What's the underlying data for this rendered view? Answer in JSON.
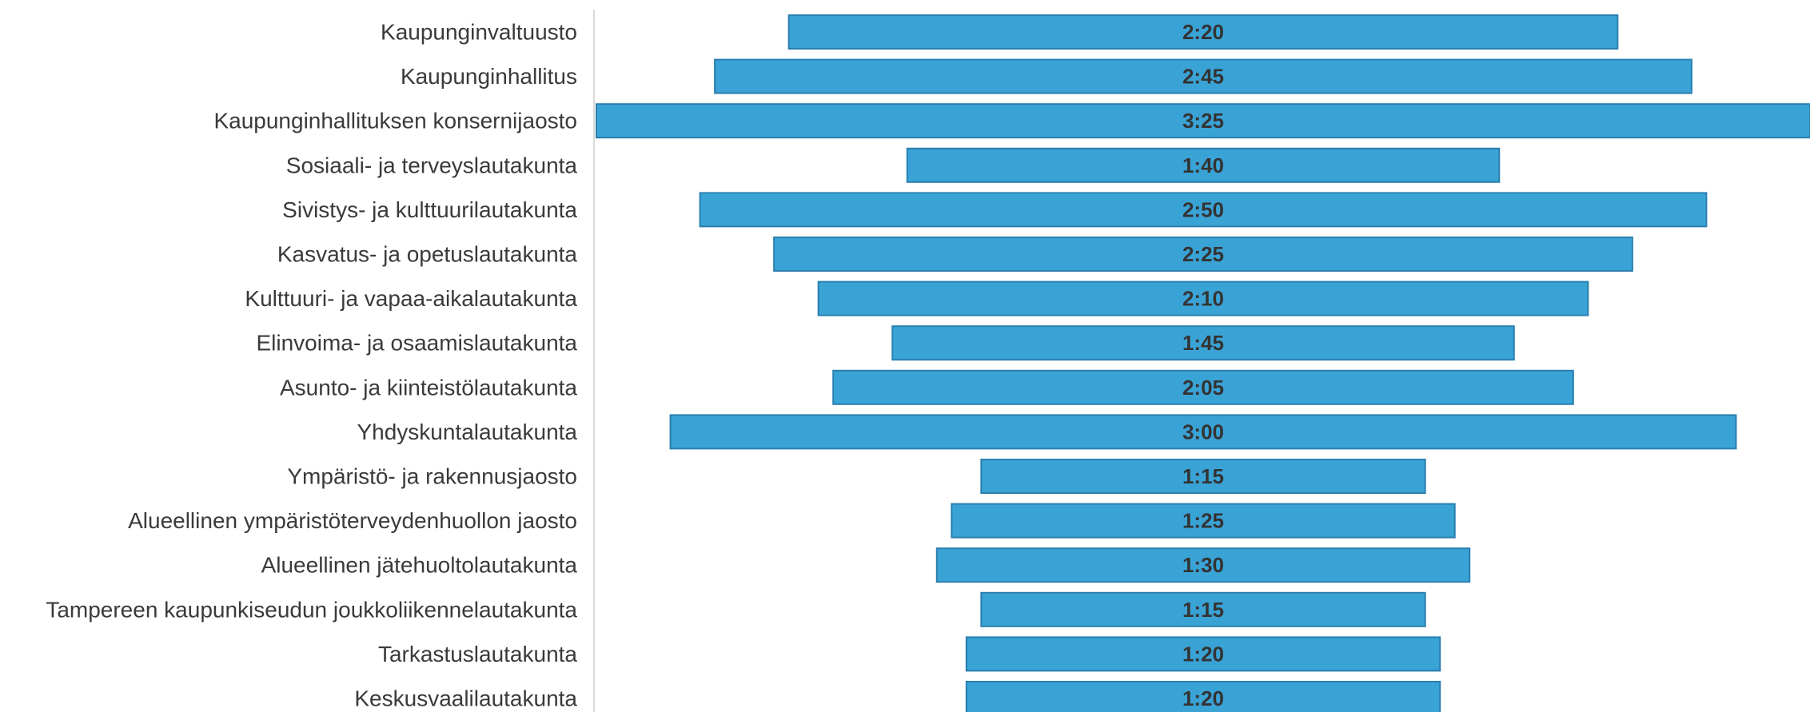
{
  "chart_data": {
    "type": "bar",
    "orientation": "horizontal",
    "layout": "centered",
    "categories": [
      "Kaupunginvaltuusto",
      "Kaupunginhallitus",
      "Kaupunginhallituksen konsernijaosto",
      "Sosiaali- ja terveyslautakunta",
      "Sivistys- ja kulttuurilautakunta",
      "Kasvatus- ja opetuslautakunta",
      "Kulttuuri- ja vapaa-aikalautakunta",
      "Elinvoima- ja osaamislautakunta",
      "Asunto- ja kiinteistölautakunta",
      "Yhdyskuntalautakunta",
      "Ympäristö- ja rakennusjaosto",
      "Alueellinen ympäristöterveydenhuollon jaosto",
      "Alueellinen jätehuoltolautakunta",
      "Tampereen kaupunkiseudun joukkoliikennelautakunta",
      "Tarkastuslautakunta",
      "Keskusvaalilautakunta"
    ],
    "values": [
      140,
      165,
      205,
      100,
      170,
      145,
      130,
      105,
      125,
      180,
      75,
      85,
      90,
      75,
      80,
      80
    ],
    "value_unit": "minutes",
    "value_labels": [
      "2:20",
      "2:45",
      "3:25",
      "1:40",
      "2:50",
      "2:25",
      "2:10",
      "1:45",
      "2:05",
      "3:00",
      "1:15",
      "1:25",
      "1:30",
      "1:15",
      "1:20",
      "1:20"
    ],
    "title": "",
    "xlabel": "",
    "ylabel": "",
    "grid": false,
    "legend": "none",
    "colors": {
      "bar_fill": "#3aa3d6",
      "bar_stroke": "#2a7fae",
      "axis": "#d9d9d9",
      "label_text": "#3a3a3a",
      "value_text": "#333333"
    }
  }
}
